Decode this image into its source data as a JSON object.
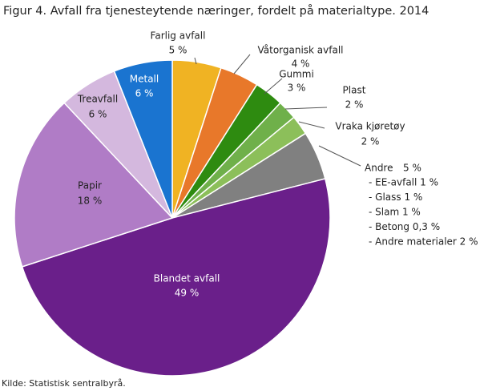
{
  "chart_data": {
    "type": "pie",
    "title": "Figur 4. Avfall fra tjenesteytende næringer, fordelt på materialtype. 2014",
    "categories": [
      "Farlig avfall",
      "Våtorganisk avfall",
      "Gummi",
      "Plast",
      "Vraka kjøretøy",
      "Andre",
      "Blandet avfall",
      "Papir",
      "Treavfall",
      "Metall"
    ],
    "values": [
      5,
      4,
      3,
      2,
      2,
      5,
      49,
      18,
      6,
      6
    ],
    "value_labels": [
      "5 %",
      "4 %",
      "3 %",
      "2 %",
      "2 %",
      "5 %",
      "49 %",
      "18 %",
      "6 %",
      "6 %"
    ],
    "colors": [
      "#f0b323",
      "#e8782a",
      "#2e8b10",
      "#6fb04a",
      "#8cbf5a",
      "#808080",
      "#6a1f8a",
      "#b07cc6",
      "#d4b8de",
      "#1a74d0"
    ],
    "annotations": [
      "- EE-avfall  1 %",
      "- Glass  1 %",
      "- Slam  1 %",
      "- Betong  0,3 %",
      "- Andre materialer  2 %"
    ],
    "source": "Kilde: Statistisk sentralbyrå."
  }
}
